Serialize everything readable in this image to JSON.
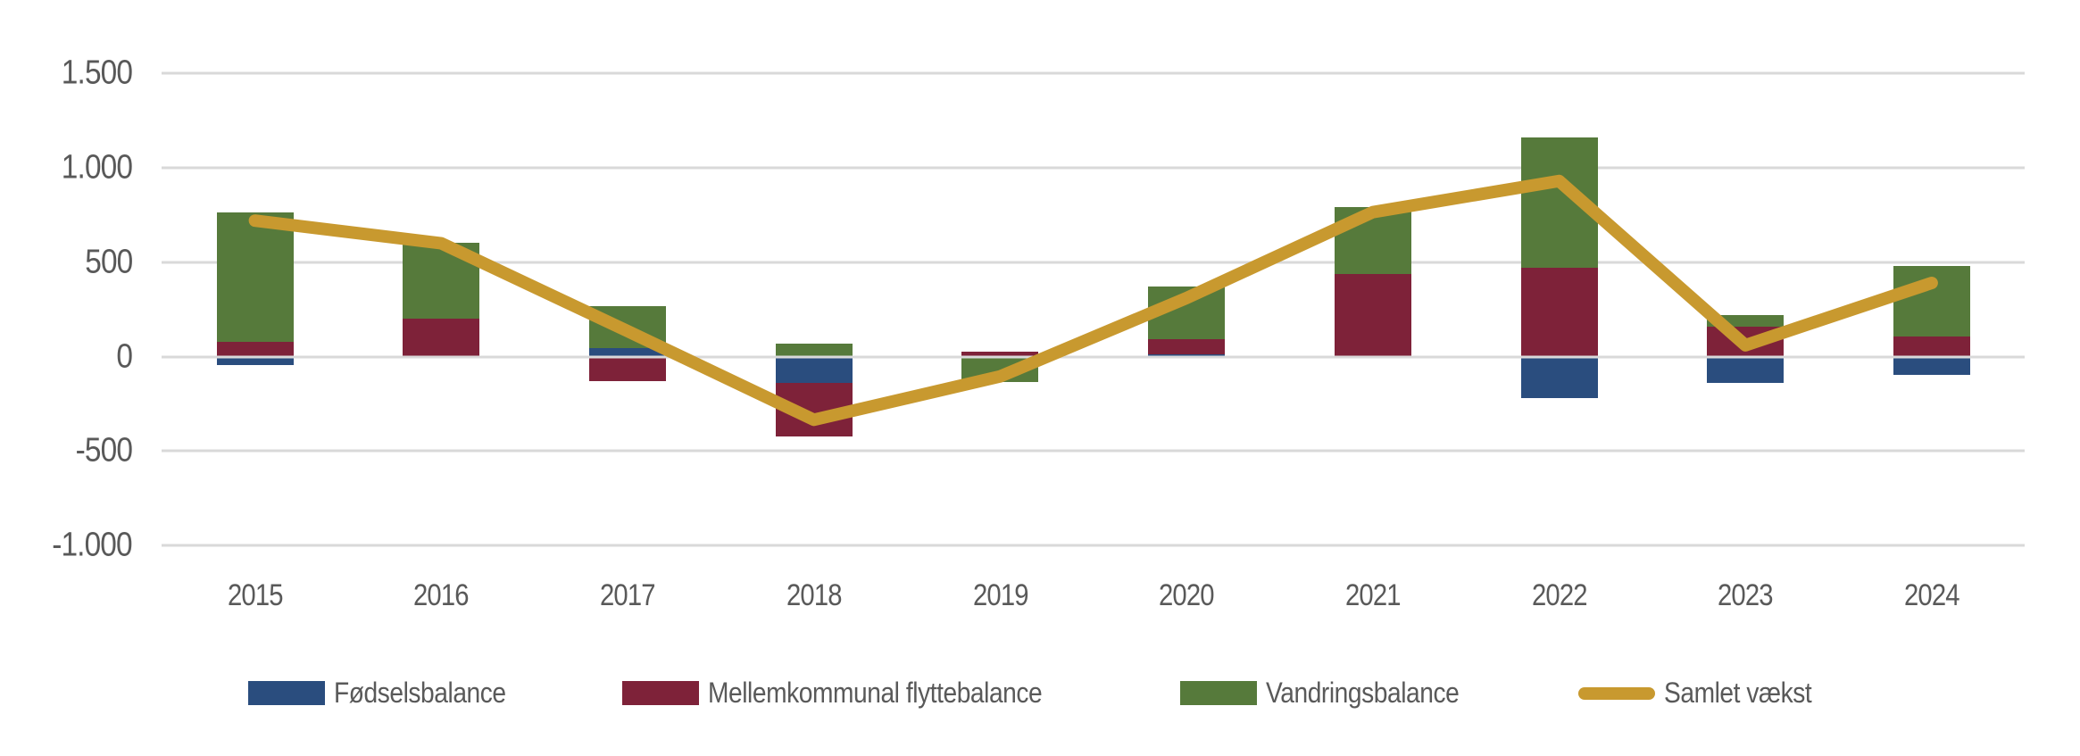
{
  "chart_data": {
    "type": "bar",
    "subtype": "stacked-bar-with-line-overlay",
    "title": "",
    "categories": [
      "2015",
      "2016",
      "2017",
      "2018",
      "2019",
      "2020",
      "2021",
      "2022",
      "2023",
      "2024"
    ],
    "series": [
      {
        "id": "fodselsbalance",
        "name": "Fødselsbalance",
        "type": "bar",
        "color": "#2A4D7E",
        "values": [
          -45,
          0,
          45,
          -140,
          0,
          10,
          0,
          -220,
          -140,
          -95
        ]
      },
      {
        "id": "mellemkommunal-flyttebalance",
        "name": "Mellemkommunal flyttebalance",
        "type": "bar",
        "color": "#7E2239",
        "values": [
          80,
          200,
          -130,
          -285,
          25,
          80,
          435,
          470,
          160,
          105
        ]
      },
      {
        "id": "vandringsbalance",
        "name": "Vandringsbalance",
        "type": "bar",
        "color": "#567A3B",
        "values": [
          685,
          405,
          220,
          70,
          -135,
          280,
          355,
          690,
          60,
          375
        ]
      },
      {
        "id": "samlet-vaekst",
        "name": "Samlet vækst",
        "type": "line",
        "color": "#C8992F",
        "values": [
          720,
          600,
          135,
          -335,
          -105,
          310,
          765,
          930,
          60,
          390
        ]
      }
    ],
    "y_axis": {
      "min": -1000,
      "max": 1500,
      "step": 500,
      "tick_values": [
        1500,
        1000,
        500,
        0,
        -500,
        -1000
      ],
      "tick_labels": [
        "1.500",
        "1.000",
        "500",
        "0",
        "-500",
        "-1.000"
      ]
    },
    "x_axis": {
      "tick_labels": [
        "2015",
        "2016",
        "2017",
        "2018",
        "2019",
        "2020",
        "2021",
        "2022",
        "2023",
        "2024"
      ]
    },
    "grid": true,
    "legend_position": "bottom",
    "colors": {
      "gridline": "#D9D9D9",
      "axis_text": "#595959",
      "background": "#FFFFFF"
    }
  }
}
